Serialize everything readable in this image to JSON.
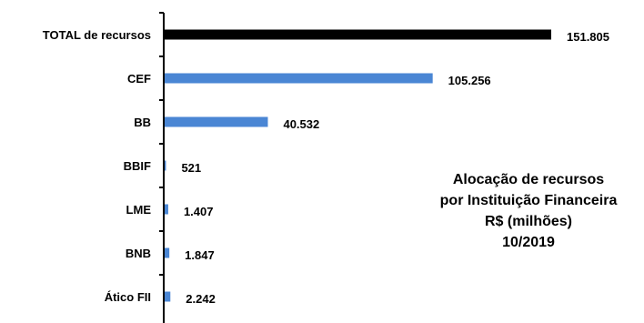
{
  "chart_data": {
    "type": "bar",
    "orientation": "horizontal",
    "categories": [
      "TOTAL de recursos",
      "CEF",
      "BB",
      "BBIF",
      "LME",
      "BNB",
      "Ático FII"
    ],
    "values": [
      151805,
      105256,
      40532,
      521,
      1407,
      1847,
      2242
    ],
    "value_labels": [
      "151.805",
      "105.256",
      "40.532",
      "521",
      "1.407",
      "1.847",
      "2.242"
    ],
    "bar_colors": [
      "#000000",
      "#4a86d4",
      "#4a86d4",
      "#4a86d4",
      "#4a86d4",
      "#4a86d4",
      "#4a86d4"
    ],
    "xlim": [
      0,
      151805
    ],
    "grid": false,
    "legend": "none",
    "annotation_lines": [
      "Alocação de recursos",
      "por Instituição Financeira",
      "R$ (milhões)",
      "10/2019"
    ]
  }
}
